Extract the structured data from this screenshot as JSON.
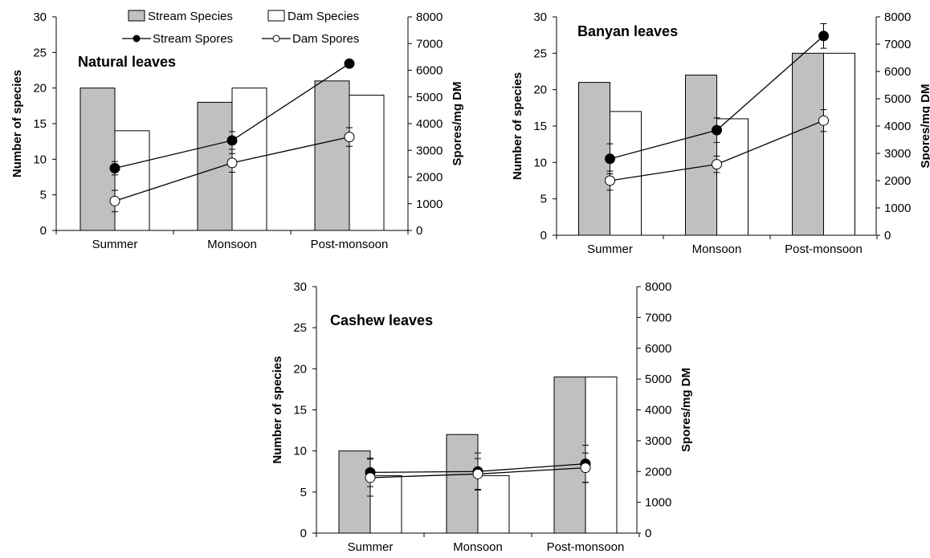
{
  "legend": {
    "stream_species": "Stream Species",
    "dam_species": "Dam Species",
    "stream_spores": "Stream Spores",
    "dam_spores": "Dam Spores"
  },
  "colors": {
    "stream_bar": "#c0c0c0",
    "dam_bar": "#ffffff",
    "stream_marker": "#000000",
    "dam_marker": "#ffffff",
    "line": "#000000"
  },
  "chart_data": [
    {
      "type": "bar",
      "title": "Natural leaves",
      "ylabel": "Number of species",
      "y2label": "Spores/mg DM",
      "ylim": [
        0,
        30
      ],
      "y2lim": [
        0,
        8000
      ],
      "yticks": [
        0,
        5,
        10,
        15,
        20,
        25,
        30
      ],
      "y2ticks": [
        0,
        1000,
        2000,
        3000,
        4000,
        5000,
        6000,
        7000,
        8000
      ],
      "categories": [
        "Summer",
        "Monsoon",
        "Post-monsoon"
      ],
      "series": [
        {
          "name": "Stream Species",
          "type": "bar",
          "axis": "left",
          "values": [
            20,
            18,
            21
          ]
        },
        {
          "name": "Dam Species",
          "type": "bar",
          "axis": "left",
          "values": [
            14,
            20,
            19
          ]
        },
        {
          "name": "Stream Spores",
          "type": "line",
          "axis": "right",
          "values": [
            2330,
            3370,
            6250
          ],
          "errors": [
            250,
            330,
            0
          ]
        },
        {
          "name": "Dam Spores",
          "type": "line",
          "axis": "right",
          "values": [
            1100,
            2530,
            3500
          ],
          "errors": [
            400,
            350,
            350
          ]
        }
      ]
    },
    {
      "type": "bar",
      "title": "Banyan leaves",
      "ylabel": "Number of species",
      "y2label": "Spores/mg DM",
      "ylim": [
        0,
        30
      ],
      "y2lim": [
        0,
        8000
      ],
      "yticks": [
        0,
        5,
        10,
        15,
        20,
        25,
        30
      ],
      "y2ticks": [
        0,
        1000,
        2000,
        3000,
        4000,
        5000,
        6000,
        7000,
        8000
      ],
      "categories": [
        "Summer",
        "Monsoon",
        "Post-monsoon"
      ],
      "series": [
        {
          "name": "Stream Species",
          "type": "bar",
          "axis": "left",
          "values": [
            21,
            22,
            25
          ]
        },
        {
          "name": "Dam Species",
          "type": "bar",
          "axis": "left",
          "values": [
            17,
            16,
            25
          ]
        },
        {
          "name": "Stream Spores",
          "type": "line",
          "axis": "right",
          "values": [
            2800,
            3850,
            7300
          ],
          "errors": [
            550,
            450,
            450
          ]
        },
        {
          "name": "Dam Spores",
          "type": "line",
          "axis": "right",
          "values": [
            2000,
            2600,
            4200
          ],
          "errors": [
            350,
            300,
            400
          ]
        }
      ]
    },
    {
      "type": "bar",
      "title": "Cashew leaves",
      "ylabel": "Number of species",
      "y2label": "Spores/mg DM",
      "ylim": [
        0,
        30
      ],
      "y2lim": [
        0,
        8000
      ],
      "yticks": [
        0,
        5,
        10,
        15,
        20,
        25,
        30
      ],
      "y2ticks": [
        0,
        1000,
        2000,
        3000,
        4000,
        5000,
        6000,
        7000,
        8000
      ],
      "categories": [
        "Summer",
        "Monsoon",
        "Post-monsoon"
      ],
      "series": [
        {
          "name": "Stream Species",
          "type": "bar",
          "axis": "left",
          "values": [
            10,
            12,
            19
          ]
        },
        {
          "name": "Dam Species",
          "type": "bar",
          "axis": "left",
          "values": [
            7,
            7,
            19
          ]
        },
        {
          "name": "Stream Spores",
          "type": "line",
          "axis": "right",
          "values": [
            1970,
            2000,
            2250
          ],
          "errors": [
            460,
            600,
            600
          ]
        },
        {
          "name": "Dam Spores",
          "type": "line",
          "axis": "right",
          "values": [
            1800,
            1920,
            2120
          ],
          "errors": [
            600,
            500,
            480
          ]
        }
      ]
    }
  ]
}
